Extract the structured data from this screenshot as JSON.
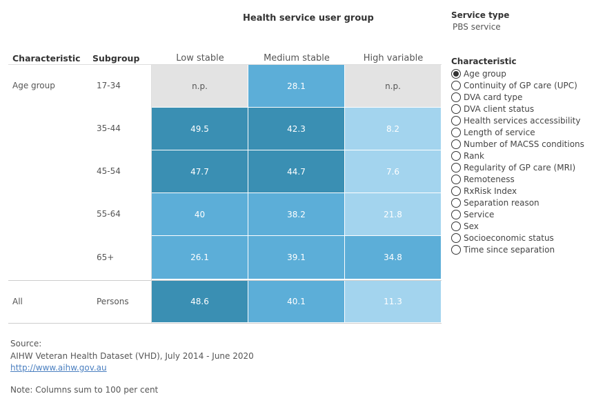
{
  "title": "Health service user group",
  "filters": {
    "service_type": {
      "label": "Service type",
      "value": "PBS service"
    },
    "characteristic": {
      "label": "Characteristic",
      "selected": 0,
      "options": [
        "Age group",
        "Continuity of GP care (UPC)",
        "DVA card type",
        "DVA client status",
        "Health services accessibility",
        "Length of service",
        "Number of MACSS conditions",
        "Rank",
        "Regularity of GP care (MRI)",
        "Remoteness",
        "RxRisk Index",
        "Separation reason",
        "Service",
        "Sex",
        "Socioeconomic status",
        "Time since separation"
      ]
    }
  },
  "table": {
    "headers": [
      "Characteristic",
      "Subgroup",
      "Low stable",
      "Medium stable",
      "High variable"
    ],
    "rows": [
      {
        "characteristic": "Age group",
        "subgroup": "17-34",
        "values": [
          "n.p.",
          28.1,
          "n.p."
        ]
      },
      {
        "subgroup": "35-44",
        "values": [
          49.5,
          42.3,
          8.2
        ]
      },
      {
        "subgroup": "45-54",
        "values": [
          47.7,
          44.7,
          7.6
        ]
      },
      {
        "subgroup": "55-64",
        "values": [
          40,
          38.2,
          21.8
        ]
      },
      {
        "subgroup": "65+",
        "values": [
          26.1,
          39.1,
          34.8
        ]
      },
      {
        "characteristic": "All",
        "subgroup": "Persons",
        "values": [
          48.6,
          40.1,
          11.3
        ]
      }
    ]
  },
  "footer": {
    "source_label": "Source:",
    "source": "AIHW Veteran Health Dataset (VHD), July 2014 - June 2020",
    "link": "http://www.aihw.gov.au",
    "note": "Note: Columns sum to 100 per cent"
  }
}
